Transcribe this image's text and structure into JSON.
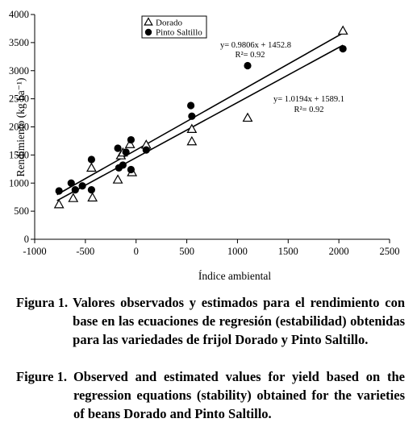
{
  "chart_data": {
    "type": "scatter",
    "xlabel": "Índice ambiental",
    "ylabel": "Rendimiento (kg ha⁻¹)",
    "xlim": [
      -1000,
      2500
    ],
    "ylim": [
      0,
      4000
    ],
    "x_ticks": [
      "-1000",
      "-500",
      "0",
      "500",
      "1000",
      "1500",
      "2000",
      "2500"
    ],
    "x_tick_values": [
      -1000,
      -500,
      0,
      500,
      1000,
      1500,
      2000,
      2500
    ],
    "y_ticks": [
      "0",
      "500",
      "1000",
      "1500",
      "2000",
      "2500",
      "3000",
      "3500",
      "4000"
    ],
    "y_tick_values": [
      0,
      500,
      1000,
      1500,
      2000,
      2500,
      3000,
      3500,
      4000
    ],
    "legend_position": "top-left",
    "series": [
      {
        "name": "Dorado",
        "marker": "triangle-open",
        "points": [
          [
            -760,
            610
          ],
          [
            -620,
            720
          ],
          [
            -440,
            1260
          ],
          [
            -430,
            730
          ],
          [
            -180,
            1050
          ],
          [
            -150,
            1480
          ],
          [
            -130,
            1530
          ],
          [
            -60,
            1680
          ],
          [
            -40,
            1180
          ],
          [
            100,
            1670
          ],
          [
            550,
            1950
          ],
          [
            550,
            1730
          ],
          [
            1100,
            2150
          ],
          [
            2040,
            3700
          ]
        ],
        "fit": {
          "slope": 1.0194,
          "intercept": 1589.1,
          "x_range": [
            -780,
            2040
          ],
          "equation": "y= 1.0194x + 1589.1",
          "r2": "R²= 0.92"
        }
      },
      {
        "name": "Pinto Saltillo",
        "marker": "circle-filled",
        "points": [
          [
            -760,
            860
          ],
          [
            -640,
            1000
          ],
          [
            -600,
            880
          ],
          [
            -530,
            950
          ],
          [
            -440,
            1420
          ],
          [
            -440,
            880
          ],
          [
            -180,
            1620
          ],
          [
            -170,
            1270
          ],
          [
            -130,
            1320
          ],
          [
            -100,
            1550
          ],
          [
            -50,
            1770
          ],
          [
            -50,
            1240
          ],
          [
            100,
            1590
          ],
          [
            540,
            2380
          ],
          [
            550,
            2190
          ],
          [
            1100,
            3090
          ],
          [
            2040,
            3390
          ]
        ],
        "fit": {
          "slope": 0.9806,
          "intercept": 1452.8,
          "x_range": [
            -780,
            2040
          ],
          "equation": "y= 0.9806x + 1452.8",
          "r2": "R²= 0.92"
        }
      }
    ]
  },
  "caption_es": {
    "label": "Figura 1.",
    "text": "Valores observados y estimados para el rendimiento con base en las ecuaciones de regresión (estabilidad) obtenidas para las variedades de frijol Dorado y Pinto Saltillo."
  },
  "caption_en": {
    "label": "Figure 1.",
    "text": "Observed and estimated values for yield based on the regression equations (stability) obtained for the varieties of beans Dorado and Pinto Saltillo."
  }
}
